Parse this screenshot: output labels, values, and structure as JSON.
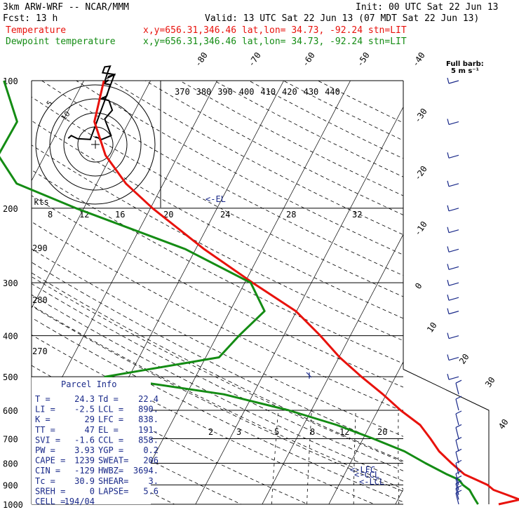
{
  "header": {
    "model": "3km ARW-WRF -- NCAR/MMM",
    "init": "Init: 00 UTC Sat 22 Jun 13",
    "fcst": "Fcst:   13 h",
    "valid": "Valid: 13 UTC Sat 22 Jun 13 (07 MDT Sat 22 Jun 13)",
    "temp_label": "Temperature",
    "dew_label": "Dewpoint temperature",
    "temp_loc": "x,y=656.31,346.46   lat,lon= 34.73, -92.24   stn=LIT",
    "dew_loc": "x,y=656.31,346.46   lat,lon= 34.73, -92.24   stn=LIT",
    "barb_title_1": "Full barb:",
    "barb_title_2": "5 m s⁻¹"
  },
  "colors": {
    "temperature": "#e8120c",
    "dewpoint": "#148c14",
    "text_navy": "#1a2a8a",
    "grid": "#000000"
  },
  "chart_data": {
    "type": "line",
    "title": "3km ARW-WRF -- NCAR/MMM",
    "pressure_labels": [
      "100",
      "200",
      "300",
      "400",
      "500",
      "600",
      "700",
      "800",
      "900",
      "1000"
    ],
    "pressure_levels": [
      100,
      200,
      300,
      400,
      500,
      600,
      700,
      800,
      900,
      1000
    ],
    "isotherm_labels": [
      "-80",
      "-70",
      "-60",
      "-50",
      "-40",
      "-30",
      "-20",
      "-10",
      "0",
      "10",
      "20",
      "30",
      "40"
    ],
    "theta_labels": [
      "370",
      "380",
      "390",
      "400",
      "410",
      "420",
      "430",
      "440"
    ],
    "theta_left_labels": [
      "290",
      "280",
      "270"
    ],
    "mixing_ratio_labels": [
      "2",
      "3",
      "5",
      "8",
      "12",
      "20"
    ],
    "mixing_ratio_values": [
      2,
      3,
      5,
      8,
      12,
      20
    ],
    "level_markers": [
      "<-EL",
      "<-LFC",
      "<-CCL",
      "<-LCL"
    ],
    "series": [
      {
        "name": "Temperature",
        "unit": "C",
        "points": [
          [
            1000,
            25.5
          ],
          [
            975,
            28.3
          ],
          [
            950,
            26.0
          ],
          [
            925,
            23.6
          ],
          [
            900,
            22.3
          ],
          [
            875,
            20.2
          ],
          [
            850,
            18.0
          ],
          [
            800,
            15.2
          ],
          [
            750,
            12.4
          ],
          [
            700,
            10.1
          ],
          [
            650,
            7.5
          ],
          [
            600,
            3.4
          ],
          [
            550,
            -0.5
          ],
          [
            500,
            -5.1
          ],
          [
            450,
            -9.9
          ],
          [
            400,
            -14.5
          ],
          [
            350,
            -20.1
          ],
          [
            300,
            -28.8
          ],
          [
            250,
            -38.7
          ],
          [
            200,
            -49.7
          ],
          [
            175,
            -55.6
          ],
          [
            150,
            -60.9
          ],
          [
            125,
            -65.2
          ],
          [
            100,
            -67.0
          ]
        ]
      },
      {
        "name": "Dewpoint temperature",
        "unit": "C",
        "points": [
          [
            1000,
            22.4
          ],
          [
            975,
            21.6
          ],
          [
            950,
            20.8
          ],
          [
            925,
            20.0
          ],
          [
            900,
            18.6
          ],
          [
            875,
            17.6
          ],
          [
            850,
            15.4
          ],
          [
            800,
            11.3
          ],
          [
            750,
            7.2
          ],
          [
            700,
            1.5
          ],
          [
            650,
            -5.0
          ],
          [
            600,
            -13.4
          ],
          [
            550,
            -24.4
          ],
          [
            500,
            -43.6
          ],
          [
            450,
            -28.0
          ],
          [
            400,
            -26.7
          ],
          [
            350,
            -24.8
          ],
          [
            300,
            -29.1
          ],
          [
            250,
            -41.5
          ],
          [
            200,
            -61.2
          ],
          [
            175,
            -72.0
          ],
          [
            150,
            -77.0
          ],
          [
            125,
            -76.8
          ],
          [
            100,
            -82.0
          ]
        ]
      }
    ],
    "x_range_C": [
      -40,
      40
    ],
    "y_range_hPa": [
      1000,
      100
    ],
    "y_scale": "log"
  },
  "hodograph": {
    "kts_label": "kts",
    "speed_labels": [
      "8",
      "12",
      "16",
      "20",
      "24",
      "28",
      "32"
    ],
    "ring_labels": [
      "5",
      "10"
    ],
    "path": [
      [
        0,
        2.0
      ],
      [
        2.1,
        1.3
      ],
      [
        5.2,
        2.3
      ],
      [
        3.1,
        6.6
      ],
      [
        5.6,
        8.9
      ],
      [
        4.5,
        11.4
      ],
      [
        2.1,
        11.9
      ],
      [
        3.8,
        12.6
      ],
      [
        4.9,
        15.5
      ],
      [
        2.8,
        15.8
      ],
      [
        4.4,
        16.7
      ],
      [
        3.1,
        16.3
      ],
      [
        4.2,
        19.0
      ],
      [
        4.9,
        20.3
      ],
      [
        3.1,
        20.1
      ],
      [
        2.4,
        18.6
      ],
      [
        6.6,
        18.1
      ],
      [
        4.5,
        17.7
      ],
      [
        4.2,
        17.3
      ],
      [
        6.3,
        18.1
      ],
      [
        -1.7,
        1.3
      ],
      [
        -5.9,
        1.5
      ],
      [
        -8.0,
        2.3
      ],
      [
        -9.0,
        1.6
      ]
    ]
  },
  "parcel_info": {
    "title": "Parcel Info",
    "rows": [
      {
        "k1": "T  =",
        "v1": "24.3",
        "k2": "Td =",
        "v2": "22.4"
      },
      {
        "k1": "LI =",
        "v1": "-2.5",
        "k2": "LCL =",
        "v2": "890."
      },
      {
        "k1": "K  =",
        "v1": "29",
        "k2": "LFC =",
        "v2": "838."
      },
      {
        "k1": "TT =",
        "v1": "47",
        "k2": "EL =",
        "v2": "191."
      },
      {
        "k1": "SVI =",
        "v1": "-1.6",
        "k2": "CCL =",
        "v2": "858."
      },
      {
        "k1": "PW =",
        "v1": "3.93",
        "k2": "YGP =",
        "v2": "0.2"
      },
      {
        "k1": "CAPE =",
        "v1": "1239",
        "k2": "SWEAT=",
        "v2": "206"
      },
      {
        "k1": "CIN =",
        "v1": "-129",
        "k2": "HWBZ=",
        "v2": "3694."
      },
      {
        "k1": "Tc =",
        "v1": "30.9",
        "k2": "SHEAR=",
        "v2": "3."
      },
      {
        "k1": "SREH =",
        "v1": "0",
        "k2": "LAPSE=",
        "v2": "5.6"
      },
      {
        "k1": "CELL =",
        "v1": "194/04",
        "k2": "",
        "v2": ""
      }
    ]
  },
  "wind_barbs": {
    "levels": [
      100,
      125,
      150,
      175,
      200,
      225,
      250,
      275,
      300,
      325,
      350,
      400,
      450,
      500,
      550,
      600,
      650,
      700,
      750,
      800,
      850,
      900,
      925,
      950,
      975,
      1000
    ]
  }
}
